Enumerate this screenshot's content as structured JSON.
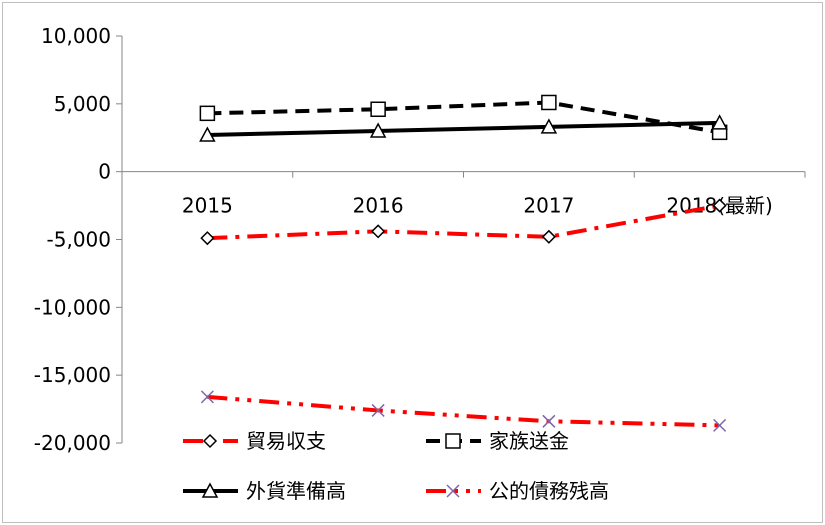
{
  "chart_data": {
    "type": "line",
    "title": "",
    "xlabel": "",
    "ylabel": "",
    "categories": [
      "2015",
      "2016",
      "2017",
      "2018(最新)"
    ],
    "ylim": [
      -20000,
      10000
    ],
    "yticks": [
      10000,
      5000,
      0,
      -5000,
      -10000,
      -15000,
      -20000
    ],
    "ytick_labels": [
      "10,000",
      "5,000",
      "0",
      "-5,000",
      "-10,000",
      "-15,000",
      "-20,000"
    ],
    "grid": false,
    "legend_position": "bottom",
    "series": [
      {
        "name": "貿易収支",
        "values": [
          -4900,
          -4400,
          -4800,
          -2500
        ],
        "color": "#ff0000",
        "marker": "diamond",
        "dash": "dash-dot"
      },
      {
        "name": "家族送金",
        "values": [
          4300,
          4600,
          5100,
          2900
        ],
        "color": "#000000",
        "marker": "square",
        "dash": "dash"
      },
      {
        "name": "外貨準備高",
        "values": [
          2700,
          3000,
          3300,
          3600
        ],
        "color": "#000000",
        "marker": "triangle",
        "dash": "solid"
      },
      {
        "name": "公的債務残高",
        "values": [
          -16600,
          -17600,
          -18400,
          -18700
        ],
        "color": "#ff0000",
        "marker": "x",
        "dash": "dash-dot-dot"
      }
    ]
  }
}
